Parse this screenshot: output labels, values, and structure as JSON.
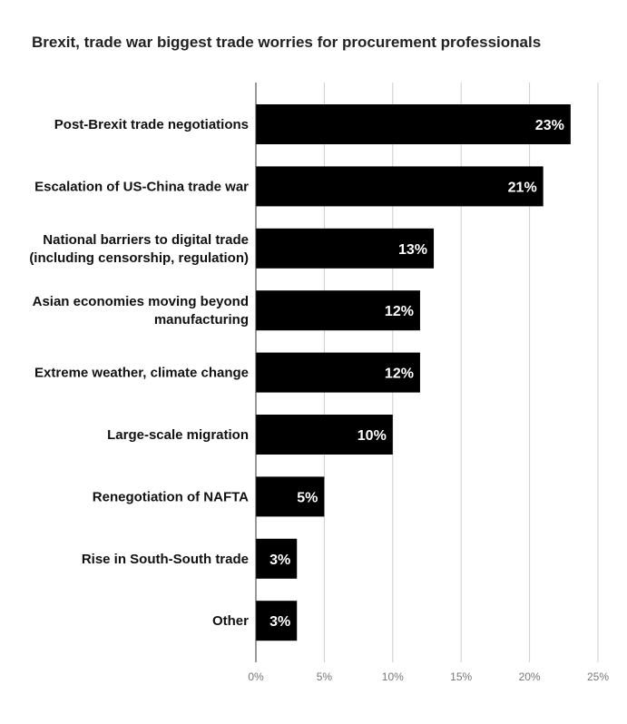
{
  "chart_data": {
    "type": "bar",
    "orientation": "horizontal",
    "title": "Brexit, trade war biggest trade worries for procurement professionals",
    "xlabel": "",
    "ylabel": "",
    "categories": [
      [
        "Post-Brexit trade negotiations"
      ],
      [
        "Escalation of US-China trade war"
      ],
      [
        "National barriers to digital trade",
        "(including censorship, regulation)"
      ],
      [
        "Asian economies moving beyond",
        "manufacturing"
      ],
      [
        "Extreme weather, climate change"
      ],
      [
        "Large-scale migration"
      ],
      [
        "Renegotiation of NAFTA"
      ],
      [
        "Rise in South-South trade"
      ],
      [
        "Other"
      ]
    ],
    "values": [
      23,
      21,
      13,
      12,
      12,
      10,
      5,
      3,
      3
    ],
    "value_labels": [
      "23%",
      "21%",
      "13%",
      "12%",
      "12%",
      "10%",
      "5%",
      "3%",
      "3%"
    ],
    "xlim": [
      0,
      25
    ],
    "x_ticks": [
      0,
      5,
      10,
      15,
      20,
      25
    ],
    "x_tick_labels": [
      "0%",
      "5%",
      "10%",
      "15%",
      "20%",
      "25%"
    ],
    "grid": "vertical",
    "legend": "none",
    "bar_color": "#000000",
    "value_label_color": "#ffffff",
    "grid_color": "#cccccc"
  }
}
